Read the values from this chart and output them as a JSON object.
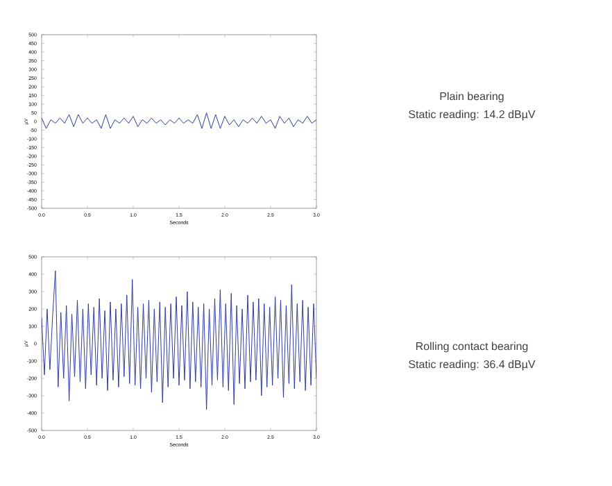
{
  "chart_data": [
    {
      "type": "line",
      "xlabel": "Seconds",
      "ylabel": "µV",
      "color": "#2e3a9e",
      "xlim": [
        0,
        3.0
      ],
      "xticks": [
        {
          "value": 0,
          "label": "0.0"
        },
        0.5,
        {
          "value": 1,
          "label": "1.0"
        },
        1.5,
        {
          "value": 2,
          "label": "2.0"
        },
        2.5,
        {
          "value": 3,
          "label": "3.0"
        }
      ],
      "ylim": [
        -500,
        500
      ],
      "yticks": [
        -500,
        -450,
        -400,
        -350,
        -300,
        -250,
        -200,
        -150,
        -100,
        -50,
        0,
        50,
        100,
        150,
        200,
        250,
        300,
        350,
        400,
        450,
        500
      ],
      "annotations": [
        "Plain bearing",
        "Static reading: 14.2 dBµV"
      ],
      "x": [
        0,
        0.05,
        0.1,
        0.15,
        0.2,
        0.25,
        0.3,
        0.35,
        0.4,
        0.45,
        0.5,
        0.55,
        0.6,
        0.65,
        0.7,
        0.75,
        0.8,
        0.85,
        0.9,
        0.95,
        1.0,
        1.05,
        1.1,
        1.15,
        1.2,
        1.25,
        1.3,
        1.35,
        1.4,
        1.45,
        1.5,
        1.55,
        1.6,
        1.65,
        1.7,
        1.75,
        1.8,
        1.85,
        1.9,
        1.95,
        2.0,
        2.05,
        2.1,
        2.15,
        2.2,
        2.25,
        2.3,
        2.35,
        2.4,
        2.45,
        2.5,
        2.55,
        2.6,
        2.65,
        2.7,
        2.75,
        2.8,
        2.85,
        2.9,
        2.95,
        3.0
      ],
      "values": [
        20,
        -40,
        10,
        -10,
        20,
        -10,
        40,
        -30,
        40,
        -10,
        20,
        -10,
        10,
        -40,
        40,
        -40,
        10,
        -10,
        20,
        -10,
        30,
        -30,
        10,
        -10,
        20,
        -10,
        10,
        -20,
        10,
        -10,
        20,
        -10,
        10,
        -10,
        40,
        -40,
        50,
        -40,
        40,
        -40,
        30,
        -20,
        10,
        -30,
        10,
        -10,
        20,
        -10,
        30,
        -10,
        10,
        -40,
        30,
        -10,
        20,
        -30,
        10,
        -10,
        30,
        -10,
        10
      ]
    },
    {
      "type": "line",
      "xlabel": "Seconds",
      "ylabel": "µV",
      "color": "#2e3a9e",
      "xlim": [
        0,
        3.0
      ],
      "xticks": [
        {
          "value": 0,
          "label": "0.0"
        },
        0.5,
        {
          "value": 1,
          "label": "1.0"
        },
        1.5,
        {
          "value": 2,
          "label": "2.0"
        },
        2.5,
        {
          "value": 3,
          "label": "3.0"
        }
      ],
      "ylim": [
        -500,
        500
      ],
      "yticks": [
        -500,
        -400,
        -300,
        -200,
        -100,
        0,
        100,
        200,
        300,
        400,
        500
      ],
      "annotations": [
        "Rolling contact bearing",
        "Static reading: 36.4 dBµV"
      ],
      "x": [
        0,
        0.03,
        0.06,
        0.09,
        0.12,
        0.15,
        0.18,
        0.21,
        0.24,
        0.27,
        0.3,
        0.33,
        0.36,
        0.39,
        0.42,
        0.45,
        0.48,
        0.51,
        0.54,
        0.57,
        0.6,
        0.63,
        0.66,
        0.69,
        0.72,
        0.75,
        0.78,
        0.81,
        0.84,
        0.87,
        0.9,
        0.93,
        0.96,
        0.99,
        1.02,
        1.05,
        1.08,
        1.11,
        1.14,
        1.17,
        1.2,
        1.23,
        1.26,
        1.29,
        1.32,
        1.35,
        1.38,
        1.41,
        1.44,
        1.47,
        1.5,
        1.53,
        1.56,
        1.59,
        1.62,
        1.65,
        1.68,
        1.71,
        1.74,
        1.77,
        1.8,
        1.83,
        1.86,
        1.89,
        1.92,
        1.95,
        1.98,
        2.01,
        2.04,
        2.07,
        2.1,
        2.13,
        2.16,
        2.19,
        2.22,
        2.25,
        2.28,
        2.31,
        2.34,
        2.37,
        2.4,
        2.43,
        2.46,
        2.49,
        2.52,
        2.55,
        2.58,
        2.61,
        2.64,
        2.67,
        2.7,
        2.73,
        2.76,
        2.79,
        2.82,
        2.85,
        2.88,
        2.91,
        2.94,
        2.97,
        3.0
      ],
      "values": [
        150,
        -180,
        200,
        -150,
        160,
        420,
        -250,
        180,
        -200,
        220,
        -330,
        170,
        -190,
        250,
        -220,
        200,
        -260,
        230,
        -180,
        210,
        -240,
        260,
        -200,
        190,
        -270,
        240,
        -210,
        200,
        -250,
        230,
        -190,
        280,
        -230,
        370,
        -240,
        210,
        -260,
        230,
        -200,
        250,
        -280,
        200,
        -220,
        240,
        -340,
        210,
        -250,
        230,
        -200,
        270,
        -240,
        220,
        -210,
        300,
        -260,
        240,
        -220,
        210,
        -250,
        230,
        -380,
        200,
        -240,
        260,
        -210,
        310,
        -250,
        230,
        -270,
        290,
        -350,
        220,
        -230,
        200,
        -260,
        280,
        -220,
        240,
        -210,
        260,
        -300,
        230,
        -250,
        210,
        -240,
        270,
        -200,
        250,
        -310,
        220,
        -230,
        340,
        -260,
        230,
        -220,
        250,
        -270,
        210,
        -240,
        230,
        -200
      ]
    }
  ]
}
